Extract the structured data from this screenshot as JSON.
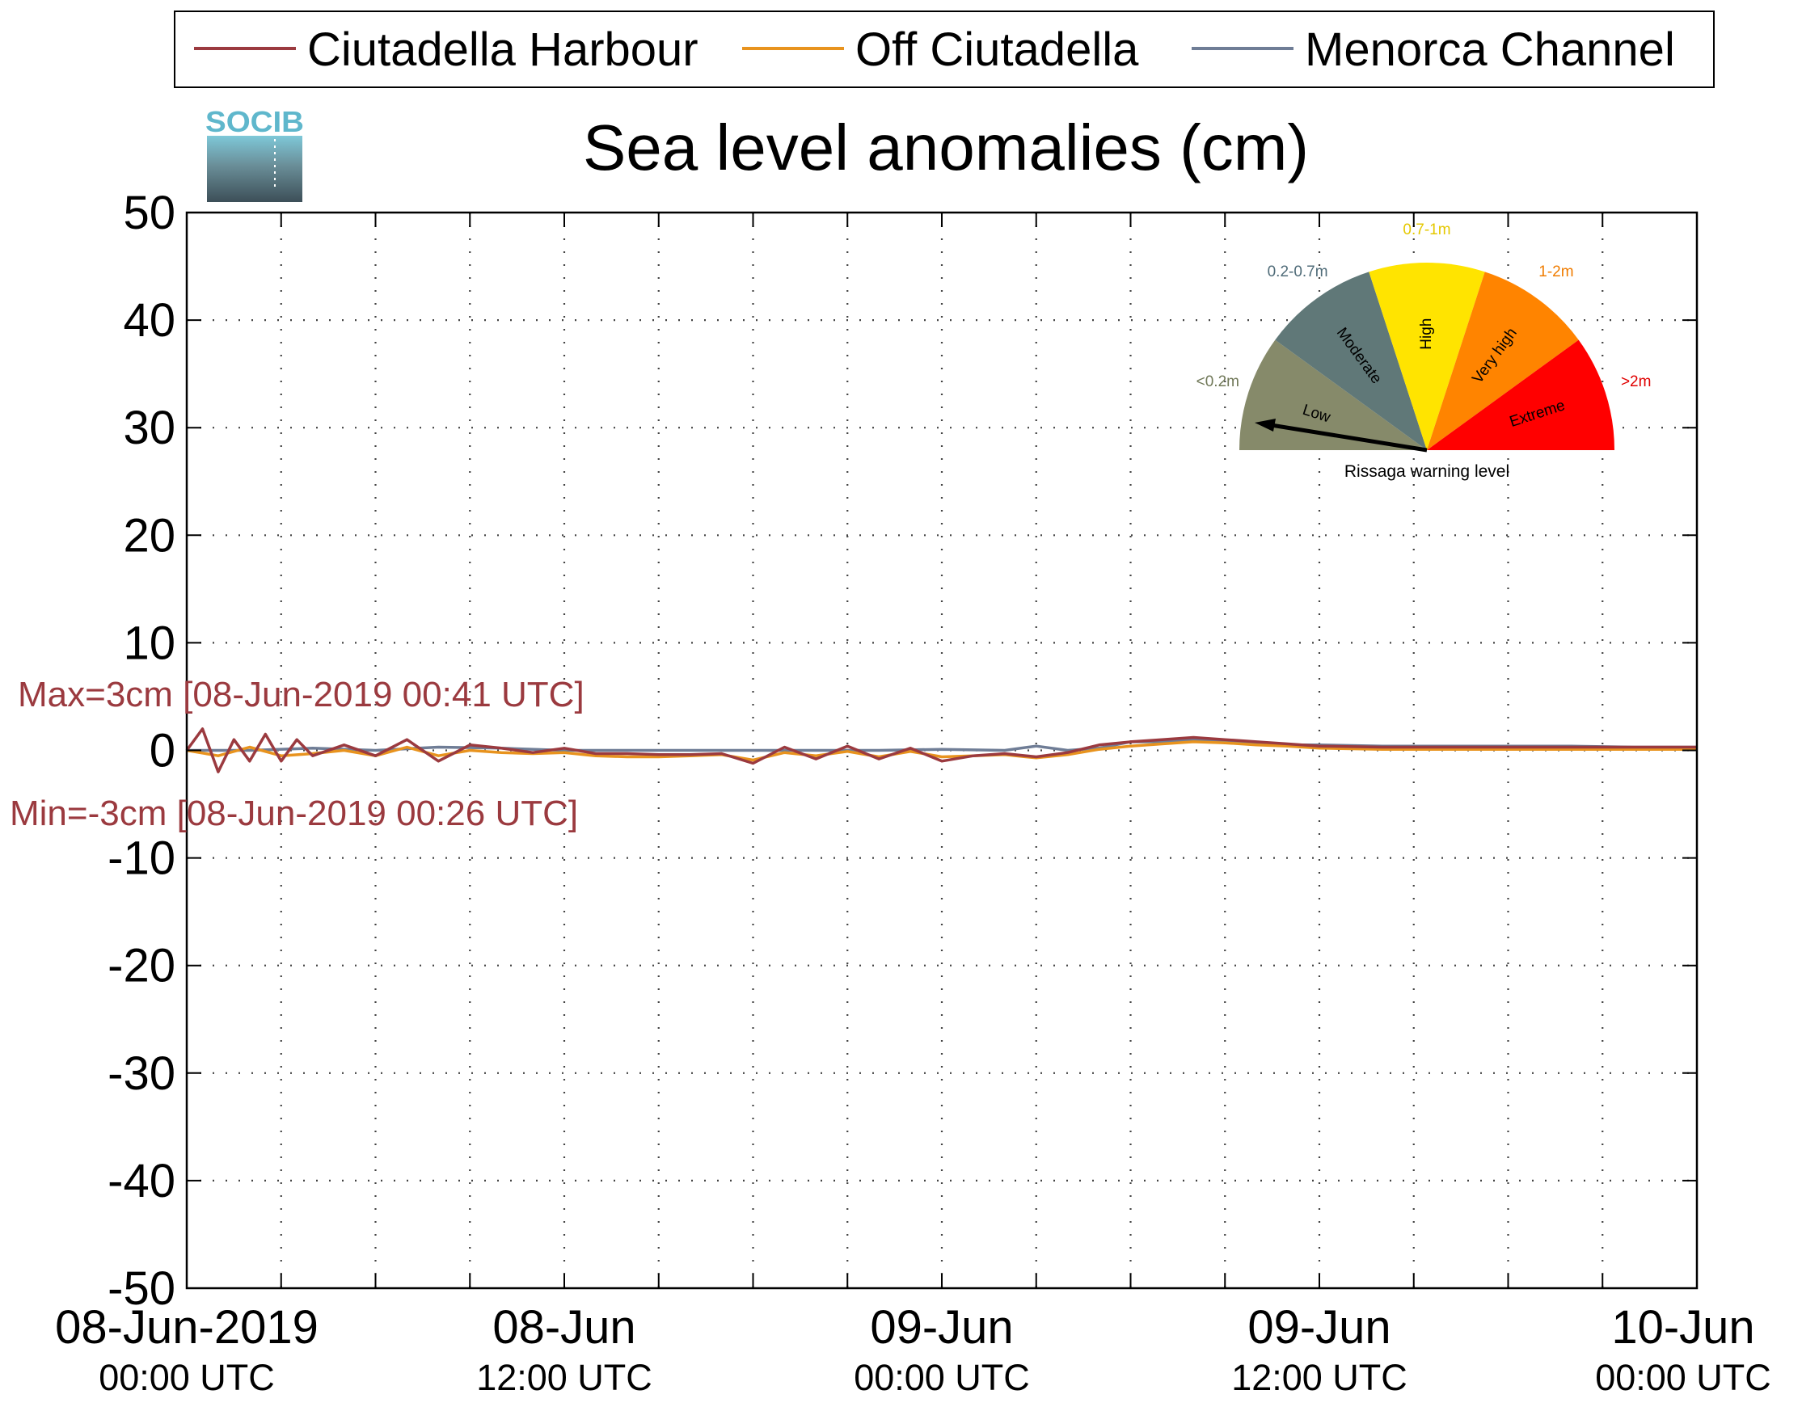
{
  "logo": {
    "text": "SOCIB"
  },
  "chart_data": {
    "type": "line",
    "title": "Sea level anomalies (cm)",
    "ylabel": "",
    "xlabel": "",
    "ylim": [
      -50,
      50
    ],
    "yticks": [
      50,
      40,
      30,
      20,
      10,
      0,
      -10,
      -20,
      -30,
      -40,
      -50
    ],
    "xlim_hours": [
      0,
      48
    ],
    "xticks": [
      {
        "hour": 0,
        "date": "08-Jun-2019",
        "time": "00:00 UTC"
      },
      {
        "hour": 12,
        "date": "08-Jun",
        "time": "12:00 UTC"
      },
      {
        "hour": 24,
        "date": "09-Jun",
        "time": "00:00 UTC"
      },
      {
        "hour": 36,
        "date": "09-Jun",
        "time": "12:00 UTC"
      },
      {
        "hour": 48,
        "date": "10-Jun",
        "time": "00:00 UTC"
      }
    ],
    "grid": true,
    "legend_position": "top",
    "series": [
      {
        "name": "Ciutadella Harbour",
        "color": "#9b3a3f",
        "x": [
          0,
          0.5,
          1,
          1.5,
          2,
          2.5,
          3,
          3.5,
          4,
          5,
          6,
          7,
          8,
          9,
          10,
          11,
          12,
          13,
          14,
          15,
          16,
          17,
          18,
          19,
          20,
          21,
          22,
          23,
          24,
          25,
          26,
          27,
          28,
          29,
          30,
          31,
          32,
          33,
          34,
          35,
          36,
          38,
          40,
          42,
          44,
          46,
          48
        ],
        "y": [
          0,
          2,
          -2,
          1,
          -1,
          1.5,
          -1,
          1,
          -0.5,
          0.5,
          -0.5,
          1,
          -1,
          0.5,
          0.2,
          -0.2,
          0.2,
          -0.3,
          -0.3,
          -0.4,
          -0.4,
          -0.3,
          -1.2,
          0.3,
          -0.8,
          0.4,
          -0.8,
          0.2,
          -1,
          -0.5,
          -0.3,
          -0.6,
          -0.2,
          0.5,
          0.8,
          1,
          1.2,
          1,
          0.8,
          0.6,
          0.4,
          0.3,
          0.3,
          0.3,
          0.3,
          0.3,
          0.3
        ]
      },
      {
        "name": "Off Ciutadella",
        "color": "#e8931e",
        "x": [
          0,
          1,
          2,
          3,
          4,
          5,
          6,
          7,
          8,
          9,
          10,
          11,
          12,
          13,
          14,
          15,
          16,
          17,
          18,
          19,
          20,
          21,
          22,
          23,
          24,
          25,
          26,
          27,
          28,
          29,
          30,
          31,
          32,
          33,
          34,
          35,
          36,
          38,
          40,
          42,
          44,
          46,
          48
        ],
        "y": [
          0,
          -0.5,
          0.3,
          -0.5,
          -0.3,
          0,
          -0.5,
          0.3,
          -0.5,
          0,
          -0.2,
          -0.3,
          -0.2,
          -0.5,
          -0.6,
          -0.6,
          -0.5,
          -0.4,
          -0.9,
          -0.2,
          -0.5,
          -0.1,
          -0.6,
          -0.1,
          -0.6,
          -0.5,
          -0.4,
          -0.7,
          -0.4,
          0.1,
          0.4,
          0.6,
          0.8,
          0.7,
          0.5,
          0.4,
          0.2,
          0.1,
          0.1,
          0.1,
          0.1,
          0.1,
          0.1
        ]
      },
      {
        "name": "Menorca Channel",
        "color": "#6f7d96",
        "x": [
          0,
          2,
          4,
          6,
          8,
          10,
          12,
          14,
          16,
          18,
          20,
          22,
          24,
          26,
          27,
          28,
          29,
          30,
          31,
          32,
          33,
          34,
          35,
          36,
          38,
          40,
          42,
          44,
          46,
          48
        ],
        "y": [
          0,
          0,
          0.2,
          0,
          0.3,
          0.2,
          0,
          0,
          0,
          0,
          0,
          0,
          0.1,
          0,
          0.4,
          0,
          0.2,
          0.8,
          0.8,
          1,
          0.8,
          0.7,
          0.5,
          0.5,
          0.4,
          0.4,
          0.4,
          0.4,
          0.3,
          0.3
        ]
      }
    ],
    "annotations": {
      "max": "Max=3cm [08-Jun-2019 00:41 UTC]",
      "min": "Min=-3cm [08-Jun-2019 00:26 UTC]"
    }
  },
  "gauge": {
    "caption": "Rissaga warning level",
    "needle_category": "Low",
    "segments": [
      {
        "name": "Low",
        "range": "<0.2m",
        "color": "#868a6a",
        "label_color": "#707858"
      },
      {
        "name": "Moderate",
        "range": "0.2-0.7m",
        "color": "#607878",
        "label_color": "#4f6b78"
      },
      {
        "name": "High",
        "range": "0.7-1m",
        "color": "#ffe400",
        "label_color": "#e5c800"
      },
      {
        "name": "Very high",
        "range": "1-2m",
        "color": "#ff8400",
        "label_color": "#f07c00"
      },
      {
        "name": "Extreme",
        "range": ">2m",
        "color": "#ff0000",
        "label_color": "#e00000"
      }
    ]
  }
}
